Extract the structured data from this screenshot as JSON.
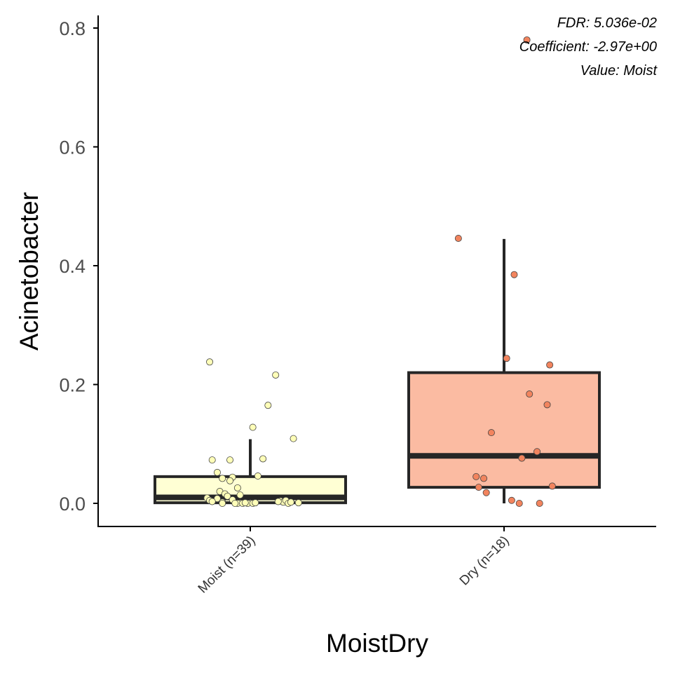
{
  "chart_data": {
    "type": "box",
    "xlabel": "MoistDry",
    "ylabel": "Acinetobacter",
    "ylim": [
      -0.04,
      0.82
    ],
    "yticks": [
      0.0,
      0.2,
      0.4,
      0.6,
      0.8
    ],
    "ytick_labels": [
      "0.0",
      "0.2",
      "0.4",
      "0.6",
      "0.8"
    ],
    "grid": false,
    "annotations": [
      "FDR: 5.036e-02",
      "Coefficient: -2.97e+00",
      "Value: Moist"
    ],
    "groups": [
      {
        "label": "Moist (n=39)",
        "color": "#FFFFD4",
        "point_color": "#FFFFB8",
        "box": {
          "whisker_low": 0.0,
          "q1": 0.001,
          "median": 0.01,
          "q3": 0.045,
          "whisker_high": 0.108
        },
        "points": [
          {
            "x": -0.16,
            "y": 0.238
          },
          {
            "x": 0.1,
            "y": 0.216
          },
          {
            "x": 0.07,
            "y": 0.165
          },
          {
            "x": 0.01,
            "y": 0.128
          },
          {
            "x": 0.17,
            "y": 0.109
          },
          {
            "x": 0.05,
            "y": 0.075
          },
          {
            "x": -0.15,
            "y": 0.073
          },
          {
            "x": -0.08,
            "y": 0.073
          },
          {
            "x": -0.13,
            "y": 0.052
          },
          {
            "x": 0.03,
            "y": 0.046
          },
          {
            "x": -0.07,
            "y": 0.044
          },
          {
            "x": -0.11,
            "y": 0.042
          },
          {
            "x": -0.08,
            "y": 0.038
          },
          {
            "x": -0.05,
            "y": 0.026
          },
          {
            "x": -0.12,
            "y": 0.02
          },
          {
            "x": -0.1,
            "y": 0.016
          },
          {
            "x": -0.04,
            "y": 0.014
          },
          {
            "x": -0.09,
            "y": 0.012
          },
          {
            "x": -0.17,
            "y": 0.009
          },
          {
            "x": -0.16,
            "y": 0.005
          },
          {
            "x": -0.13,
            "y": 0.008
          },
          {
            "x": -0.15,
            "y": 0.003
          },
          {
            "x": -0.11,
            "y": 0.002
          },
          {
            "x": -0.07,
            "y": 0.006
          },
          {
            "x": -0.11,
            "y": 0.0
          },
          {
            "x": -0.05,
            "y": 0.0
          },
          {
            "x": -0.03,
            "y": 0.0
          },
          {
            "x": -0.01,
            "y": 0.0
          },
          {
            "x": 0.01,
            "y": 0.0
          },
          {
            "x": 0.12,
            "y": 0.004
          },
          {
            "x": 0.13,
            "y": 0.002
          },
          {
            "x": 0.14,
            "y": 0.005
          },
          {
            "x": 0.15,
            "y": 0.0
          },
          {
            "x": 0.16,
            "y": 0.002
          },
          {
            "x": 0.19,
            "y": 0.001
          },
          {
            "x": -0.02,
            "y": 0.001
          },
          {
            "x": -0.06,
            "y": 0.0
          },
          {
            "x": 0.11,
            "y": 0.003
          },
          {
            "x": 0.02,
            "y": 0.001
          }
        ]
      },
      {
        "label": "Dry (n=18)",
        "color": "#FBBBA2",
        "point_color": "#F2845E",
        "box": {
          "whisker_low": 0.0,
          "q1": 0.027,
          "median": 0.08,
          "q3": 0.22,
          "whisker_high": 0.445
        },
        "points": [
          {
            "x": 0.09,
            "y": 0.78
          },
          {
            "x": -0.18,
            "y": 0.446
          },
          {
            "x": 0.04,
            "y": 0.385
          },
          {
            "x": 0.01,
            "y": 0.244
          },
          {
            "x": 0.18,
            "y": 0.233
          },
          {
            "x": 0.1,
            "y": 0.184
          },
          {
            "x": 0.17,
            "y": 0.166
          },
          {
            "x": -0.05,
            "y": 0.119
          },
          {
            "x": 0.13,
            "y": 0.087
          },
          {
            "x": 0.07,
            "y": 0.076
          },
          {
            "x": -0.11,
            "y": 0.045
          },
          {
            "x": -0.08,
            "y": 0.042
          },
          {
            "x": 0.19,
            "y": 0.029
          },
          {
            "x": -0.1,
            "y": 0.027
          },
          {
            "x": -0.07,
            "y": 0.018
          },
          {
            "x": 0.03,
            "y": 0.005
          },
          {
            "x": 0.06,
            "y": 0.0
          },
          {
            "x": 0.14,
            "y": 0.0
          }
        ]
      }
    ]
  }
}
